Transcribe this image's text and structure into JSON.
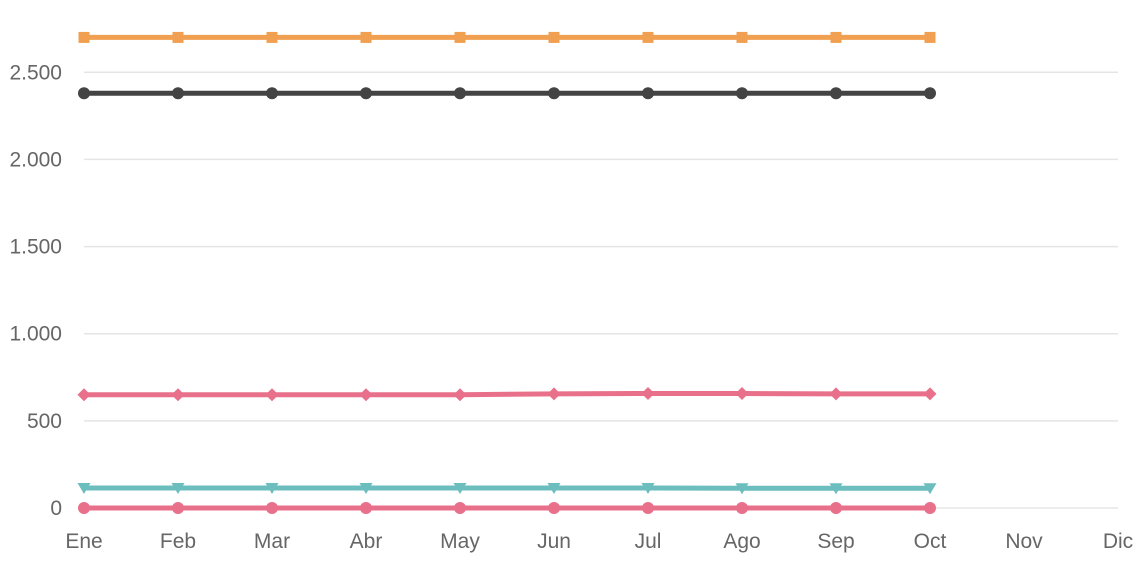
{
  "chart_data": {
    "type": "line",
    "categories": [
      "Ene",
      "Feb",
      "Mar",
      "Abr",
      "May",
      "Jun",
      "Jul",
      "Ago",
      "Sep",
      "Oct",
      "Nov",
      "Dic"
    ],
    "ylim": [
      0,
      2800
    ],
    "yticks": [
      0,
      500,
      1000,
      1500,
      2000,
      2500
    ],
    "ytick_labels": [
      "0",
      "500",
      "1.000",
      "1.500",
      "2.000",
      "2.500"
    ],
    "grid": true,
    "legend": "none",
    "series": [
      {
        "color": "#f0a050",
        "marker": "square",
        "values": [
          2700,
          2700,
          2700,
          2700,
          2700,
          2700,
          2700,
          2700,
          2700,
          2700,
          null,
          null
        ]
      },
      {
        "color": "#444444",
        "marker": "circle",
        "values": [
          2380,
          2380,
          2380,
          2380,
          2380,
          2380,
          2380,
          2380,
          2380,
          2380,
          null,
          null
        ]
      },
      {
        "color": "#e8708a",
        "marker": "diamond",
        "values": [
          650,
          650,
          650,
          650,
          650,
          655,
          657,
          657,
          655,
          655,
          null,
          null
        ]
      },
      {
        "color": "#6cbdbd",
        "marker": "triangle-down",
        "values": [
          115,
          115,
          115,
          115,
          115,
          115,
          115,
          113,
          113,
          113,
          null,
          null
        ]
      },
      {
        "color": "#e8708a",
        "marker": "circle",
        "values": [
          0,
          0,
          0,
          0,
          0,
          0,
          0,
          0,
          0,
          0,
          null,
          null
        ]
      }
    ]
  }
}
